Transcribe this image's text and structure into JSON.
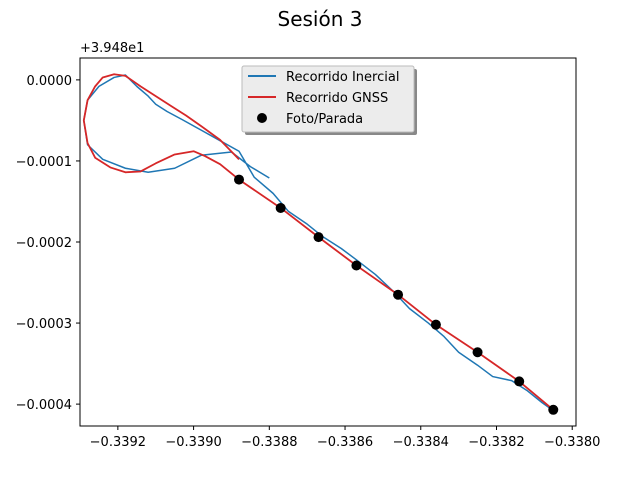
{
  "chart_data": {
    "type": "line",
    "title": "Sesión 3",
    "xlabel": "",
    "ylabel": "",
    "y_offset_label": "+3.948e1",
    "xlim": [
      -0.3393,
      -0.33799
    ],
    "ylim": [
      -0.000427,
      2.7e-05
    ],
    "x_ticks": [
      -0.3392,
      -0.339,
      -0.3388,
      -0.3386,
      -0.3384,
      -0.3382,
      -0.338
    ],
    "x_tick_labels": [
      "−0.3392",
      "−0.3390",
      "−0.3388",
      "−0.3386",
      "−0.3384",
      "−0.3382",
      "−0.3380"
    ],
    "y_ticks": [
      0.0,
      -0.0001,
      -0.0002,
      -0.0003,
      -0.0004
    ],
    "y_tick_labels": [
      "0.0000",
      "−0.0001",
      "−0.0002",
      "−0.0003",
      "−0.0004"
    ],
    "grid": false,
    "legend_position": "top-center",
    "series": [
      {
        "name": "Recorrido Inercial",
        "color": "#1f77b4",
        "style": "line",
        "x": [
          -0.3388,
          -0.33885,
          -0.3389,
          -0.33898,
          -0.33905,
          -0.33912,
          -0.33918,
          -0.33924,
          -0.33928,
          -0.33929,
          -0.33928,
          -0.33925,
          -0.33921,
          -0.33918,
          -0.33915,
          -0.33912,
          -0.3391,
          -0.33907,
          -0.33903,
          -0.33898,
          -0.33893,
          -0.33888,
          -0.33884,
          -0.33879,
          -0.33875,
          -0.3387,
          -0.33866,
          -0.33861,
          -0.33857,
          -0.33852,
          -0.33847,
          -0.33843,
          -0.33838,
          -0.33834,
          -0.3383,
          -0.33825,
          -0.33821,
          -0.33816,
          -0.33812,
          -0.33808,
          -0.33805
        ],
        "y": [
          -0.000121,
          -0.000107,
          -8.9e-05,
          -9.3e-05,
          -0.000109,
          -0.000114,
          -0.000109,
          -9.8e-05,
          -8e-05,
          -5e-05,
          -2.5e-05,
          -8e-06,
          3e-06,
          6e-06,
          -8e-06,
          -2e-05,
          -3e-05,
          -3.9e-05,
          -4.9e-05,
          -6.2e-05,
          -7.5e-05,
          -8.8e-05,
          -0.00012,
          -0.00014,
          -0.000162,
          -0.000178,
          -0.000193,
          -0.000208,
          -0.000222,
          -0.00024,
          -0.000262,
          -0.000282,
          -0.0003,
          -0.000316,
          -0.000336,
          -0.000352,
          -0.000366,
          -0.000371,
          -0.000383,
          -0.000398,
          -0.000408
        ]
      },
      {
        "name": "Recorrido GNSS",
        "color": "#d62728",
        "style": "line",
        "x": [
          -0.33805,
          -0.33814,
          -0.33825,
          -0.33836,
          -0.33846,
          -0.33857,
          -0.33867,
          -0.33877,
          -0.33888,
          -0.33893,
          -0.33897,
          -0.339,
          -0.33905,
          -0.3391,
          -0.33914,
          -0.33918,
          -0.33922,
          -0.33926,
          -0.33928,
          -0.33929,
          -0.33928,
          -0.33926,
          -0.33924,
          -0.33921,
          -0.33918,
          -0.33914,
          -0.3391,
          -0.33906,
          -0.33902,
          -0.33898,
          -0.33893,
          -0.33888
        ],
        "y": [
          -0.000407,
          -0.000372,
          -0.000336,
          -0.000302,
          -0.000265,
          -0.000229,
          -0.000194,
          -0.000158,
          -0.000123,
          -0.000104,
          -9.4e-05,
          -8.8e-05,
          -9.2e-05,
          -0.000103,
          -0.000113,
          -0.000114,
          -0.000108,
          -9.6e-05,
          -7.8e-05,
          -5e-05,
          -2.5e-05,
          -8e-06,
          3e-06,
          7e-06,
          5e-06,
          -8e-06,
          -2e-05,
          -3.2e-05,
          -4.4e-05,
          -5.7e-05,
          -7.4e-05,
          -9.8e-05
        ]
      },
      {
        "name": "Foto/Parada",
        "color": "#000000",
        "style": "marker",
        "x": [
          -0.33888,
          -0.33877,
          -0.33867,
          -0.33857,
          -0.33846,
          -0.33836,
          -0.33825,
          -0.33814,
          -0.33805
        ],
        "y": [
          -0.000123,
          -0.000158,
          -0.000194,
          -0.000229,
          -0.000265,
          -0.000302,
          -0.000336,
          -0.000372,
          -0.000407
        ]
      }
    ]
  }
}
